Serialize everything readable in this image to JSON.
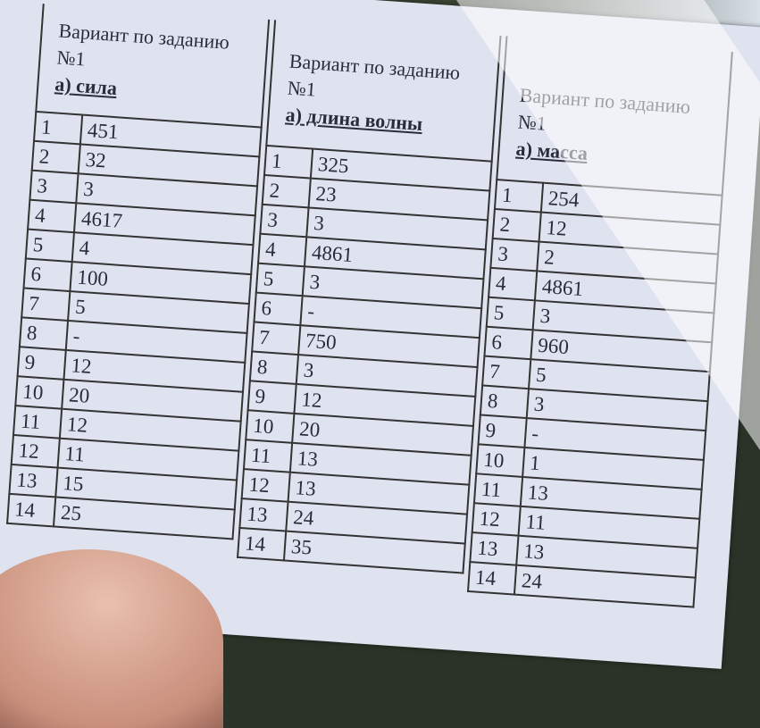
{
  "columns": [
    {
      "title": "Вариант по заданию №1",
      "subtitle": "а) сила",
      "rows": [
        [
          "1",
          "451"
        ],
        [
          "2",
          "32"
        ],
        [
          "3",
          "3"
        ],
        [
          "4",
          "4617"
        ],
        [
          "5",
          "4"
        ],
        [
          "6",
          "100"
        ],
        [
          "7",
          "5"
        ],
        [
          "8",
          "-"
        ],
        [
          "9",
          "12"
        ],
        [
          "10",
          "20"
        ],
        [
          "11",
          "12"
        ],
        [
          "12",
          "11"
        ],
        [
          "13",
          "15"
        ],
        [
          "14",
          "25"
        ]
      ]
    },
    {
      "title": "Вариант по заданию №1",
      "subtitle": "а) длина волны",
      "rows": [
        [
          "1",
          "325"
        ],
        [
          "2",
          "23"
        ],
        [
          "3",
          "3"
        ],
        [
          "4",
          "4861"
        ],
        [
          "5",
          "3"
        ],
        [
          "6",
          "-"
        ],
        [
          "7",
          "750"
        ],
        [
          "8",
          "3"
        ],
        [
          "9",
          "12"
        ],
        [
          "10",
          "20"
        ],
        [
          "11",
          "13"
        ],
        [
          "12",
          "13"
        ],
        [
          "13",
          "24"
        ],
        [
          "14",
          "35"
        ]
      ]
    },
    {
      "title": "Вариант по заданию №1",
      "subtitle": "а) масса",
      "rows": [
        [
          "1",
          "254"
        ],
        [
          "2",
          "12"
        ],
        [
          "3",
          "2"
        ],
        [
          "4",
          "4861"
        ],
        [
          "5",
          "3"
        ],
        [
          "6",
          "960"
        ],
        [
          "7",
          "5"
        ],
        [
          "8",
          "3"
        ],
        [
          "9",
          "-"
        ],
        [
          "10",
          "1"
        ],
        [
          "11",
          "13"
        ],
        [
          "12",
          "11"
        ],
        [
          "13",
          "13"
        ],
        [
          "14",
          "24"
        ]
      ]
    }
  ]
}
